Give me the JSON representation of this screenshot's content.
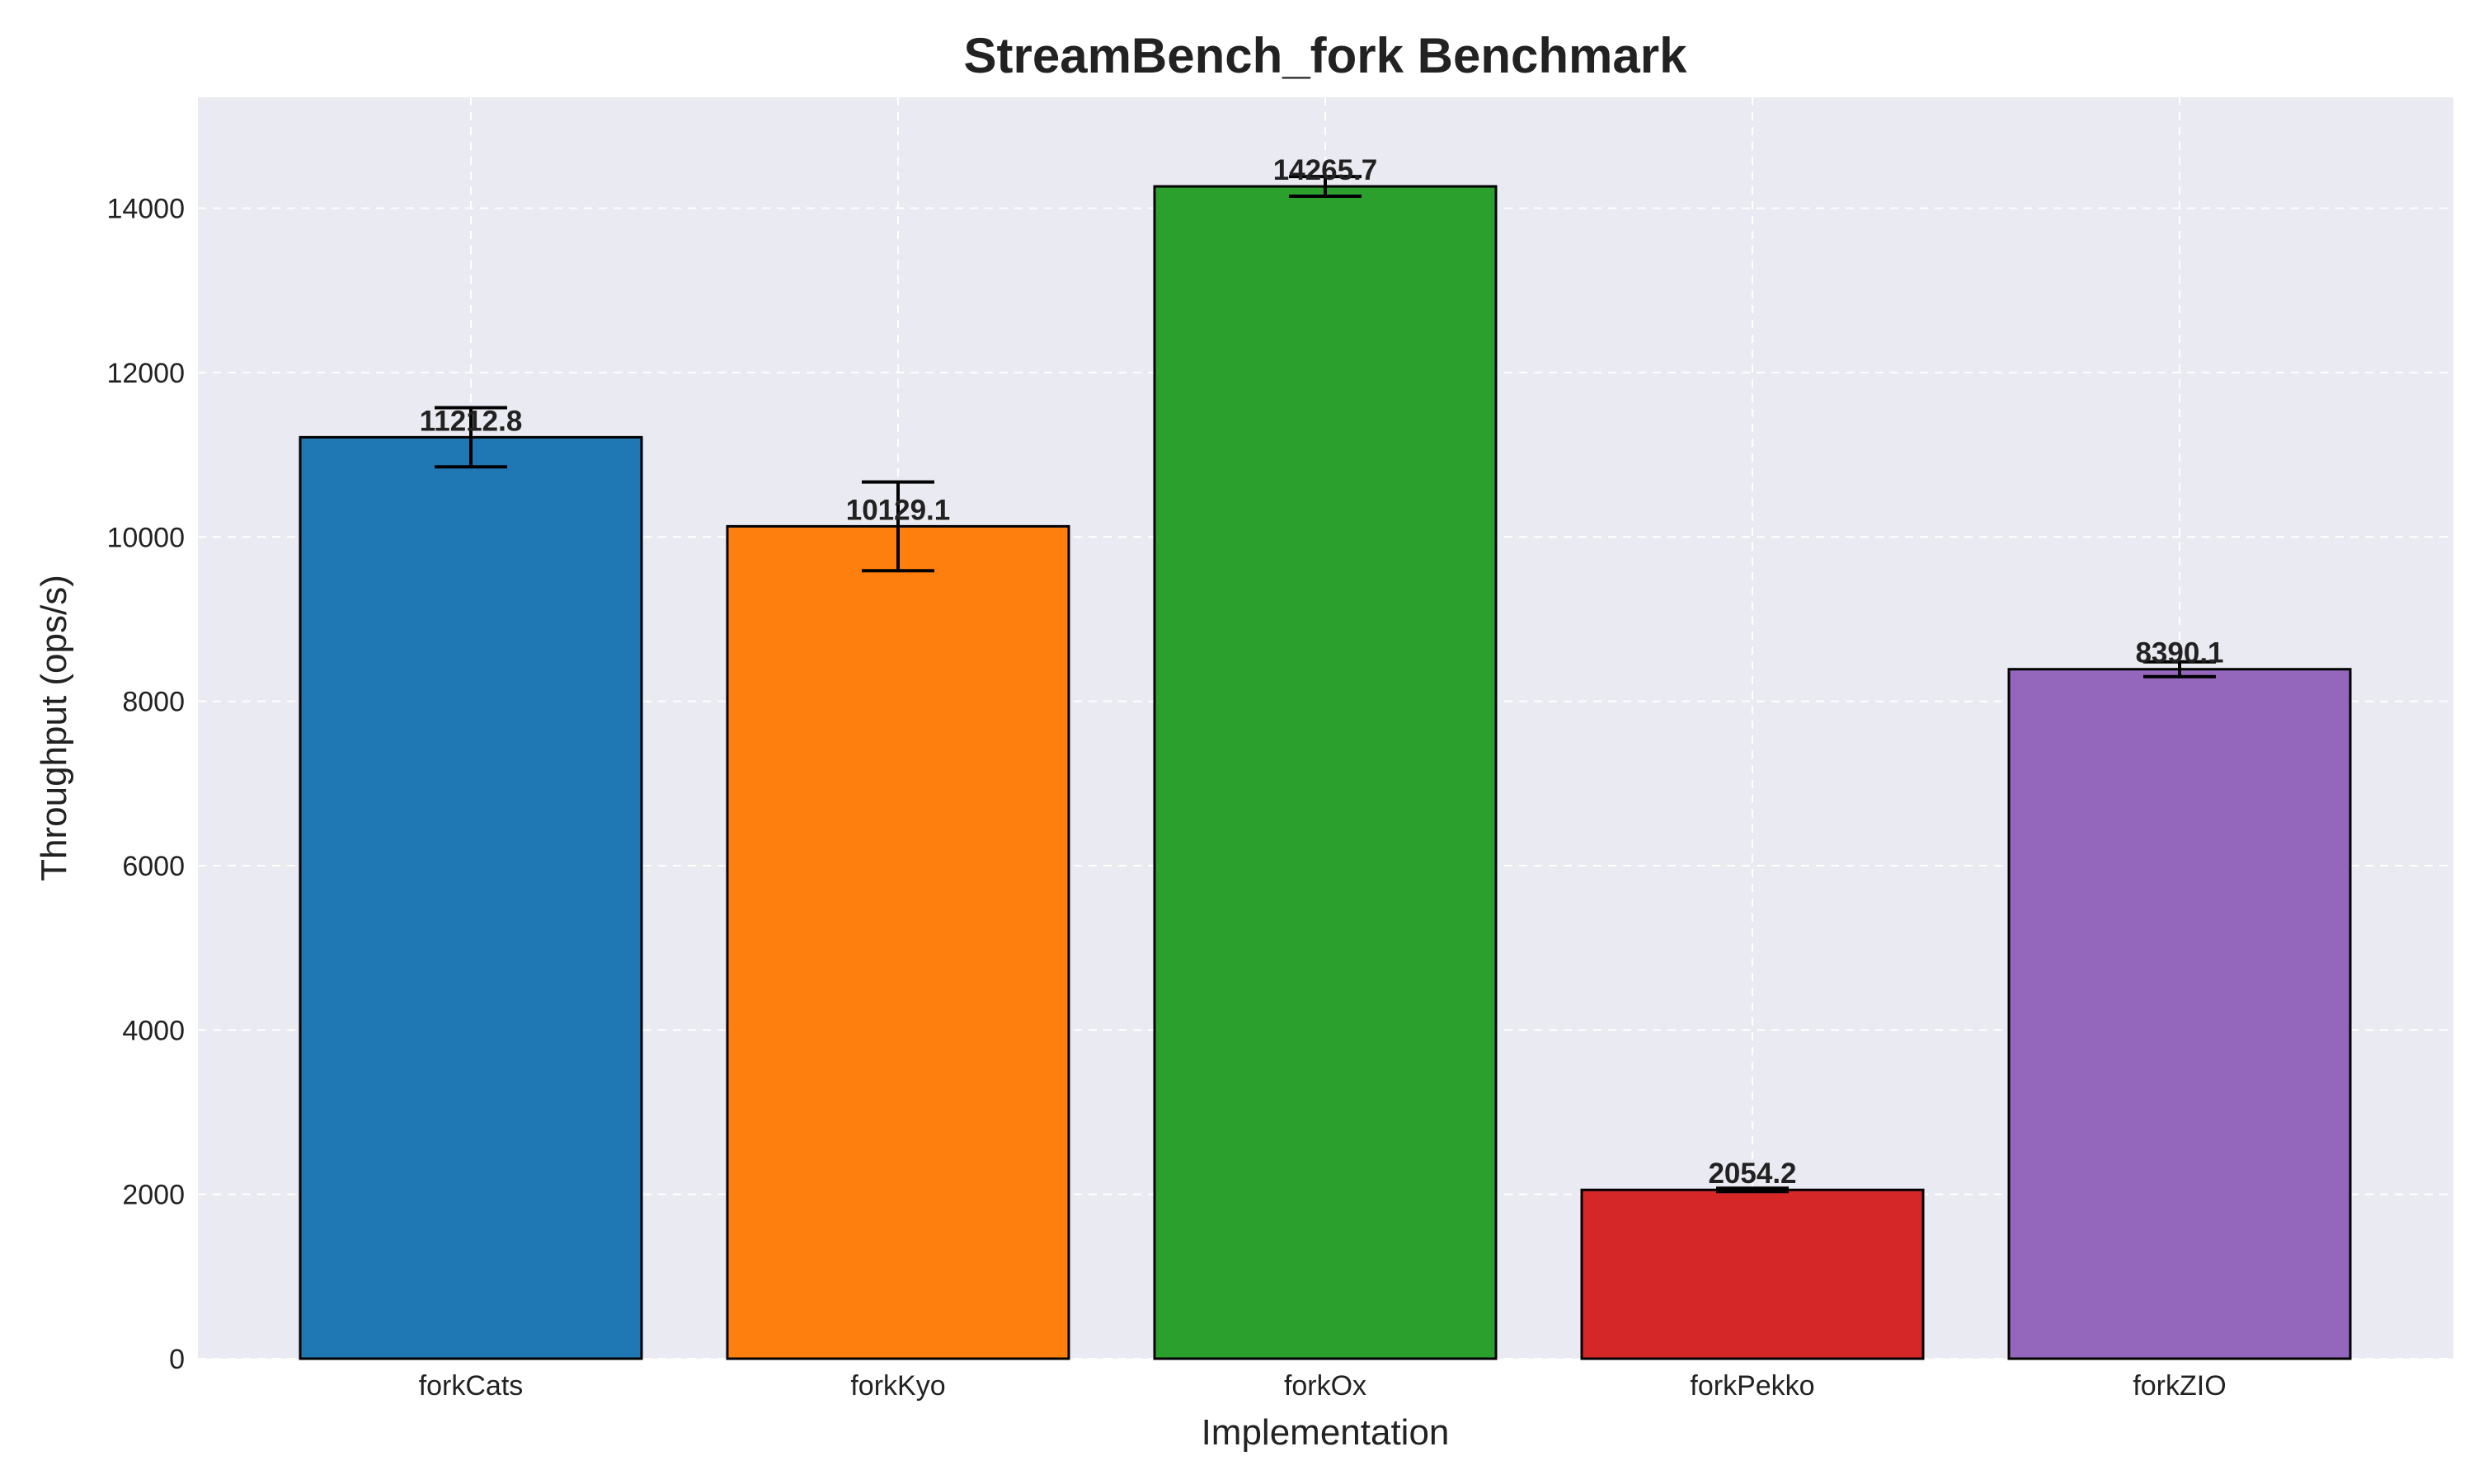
{
  "chart_data": {
    "type": "bar",
    "title": "StreamBench_fork Benchmark",
    "xlabel": "Implementation",
    "ylabel": "Throughput (ops/s)",
    "categories": [
      "forkCats",
      "forkKyo",
      "forkOx",
      "forkPekko",
      "forkZIO"
    ],
    "values": [
      11212.8,
      10129.1,
      14265.7,
      2054.2,
      8390.1
    ],
    "value_labels": [
      "11212.8",
      "10129.1",
      "14265.7",
      "2054.2",
      "8390.1"
    ],
    "errors": [
      360,
      540,
      120,
      20,
      90
    ],
    "colors": [
      "#1f77b4",
      "#ff7f0e",
      "#2ca02c",
      "#d62728",
      "#9467bd"
    ],
    "ylim": [
      0,
      15350
    ],
    "yticks": [
      0,
      2000,
      4000,
      6000,
      8000,
      10000,
      12000,
      14000
    ],
    "ytick_labels": [
      "0",
      "2000",
      "4000",
      "6000",
      "8000",
      "10000",
      "12000",
      "14000"
    ],
    "grid": true,
    "background": "#eaeaf2"
  }
}
